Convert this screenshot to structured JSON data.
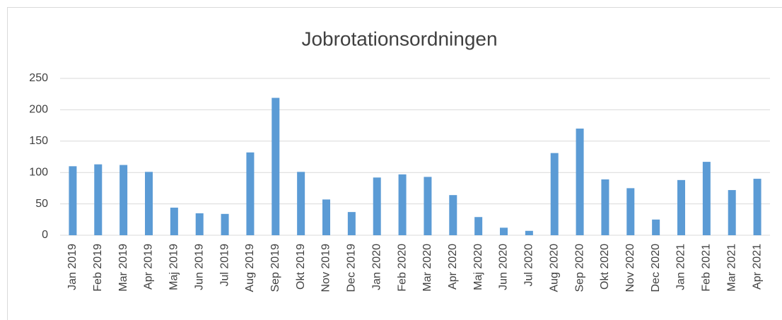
{
  "chart_data": {
    "type": "bar",
    "title": "Jobrotationsordningen",
    "categories": [
      "Jan 2019",
      "Feb 2019",
      "Mar 2019",
      "Apr 2019",
      "Maj 2019",
      "Jun 2019",
      "Jul 2019",
      "Aug 2019",
      "Sep 2019",
      "Okt 2019",
      "Nov 2019",
      "Dec 2019",
      "Jan 2020",
      "Feb 2020",
      "Mar 2020",
      "Apr 2020",
      "Maj 2020",
      "Jun 2020",
      "Jul 2020",
      "Aug 2020",
      "Sep 2020",
      "Okt 2020",
      "Nov 2020",
      "Dec 2020",
      "Jan 2021",
      "Feb 2021",
      "Mar 2021",
      "Apr 2021"
    ],
    "values": [
      110,
      113,
      112,
      101,
      44,
      35,
      34,
      132,
      219,
      101,
      57,
      37,
      92,
      97,
      93,
      64,
      29,
      12,
      7,
      131,
      170,
      89,
      75,
      25,
      88,
      117,
      72,
      90
    ],
    "color": "#5b9bd5",
    "ylim": [
      0,
      250
    ],
    "yticks": [
      0,
      50,
      100,
      150,
      200,
      250
    ],
    "grid": true
  }
}
